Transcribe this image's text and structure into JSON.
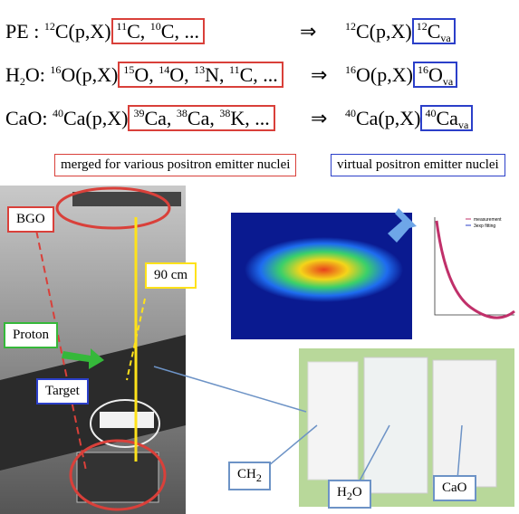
{
  "equations": [
    {
      "target": [
        "PE",
        ":"
      ],
      "reaction": [
        "12",
        "C(p,X)"
      ],
      "products": [
        "11",
        "C, ",
        "10",
        "C, ..."
      ],
      "arrow": "⇒",
      "result_reaction": [
        "12",
        "C(p,X)"
      ],
      "virtual": [
        "12",
        "C",
        "va"
      ]
    },
    {
      "target": [
        "H",
        "2",
        "O",
        ":"
      ],
      "reaction": [
        "16",
        "O(p,X)"
      ],
      "products": [
        "15",
        "O, ",
        "14",
        "O, ",
        "13",
        "N, ",
        "11",
        "C, ..."
      ],
      "arrow": "⇒",
      "result_reaction": [
        "16",
        "O(p,X)"
      ],
      "virtual": [
        "16",
        "O",
        "va"
      ]
    },
    {
      "target": [
        "CaO",
        ":"
      ],
      "reaction": [
        "40",
        "Ca(p,X)"
      ],
      "products": [
        "39",
        "Ca, ",
        "38",
        "Ca, ",
        "38",
        "K, ..."
      ],
      "arrow": "⇒",
      "result_reaction": [
        "40",
        "Ca(p,X)"
      ],
      "virtual": [
        "40",
        "Ca",
        "va"
      ]
    }
  ],
  "captions": {
    "merged": "merged for various positron emitter nuclei",
    "virtual": "virtual positron emitter nuclei"
  },
  "photo_labels": {
    "bgo": "BGO",
    "distance": "90 cm",
    "proton": "Proton",
    "target": "Target"
  },
  "chart_legend": [
    "measurement",
    "3exp fitting"
  ],
  "sample_labels": {
    "ch2": [
      "CH",
      "2"
    ],
    "h2o": [
      "H",
      "2",
      "O"
    ],
    "cao": [
      "CaO"
    ]
  }
}
